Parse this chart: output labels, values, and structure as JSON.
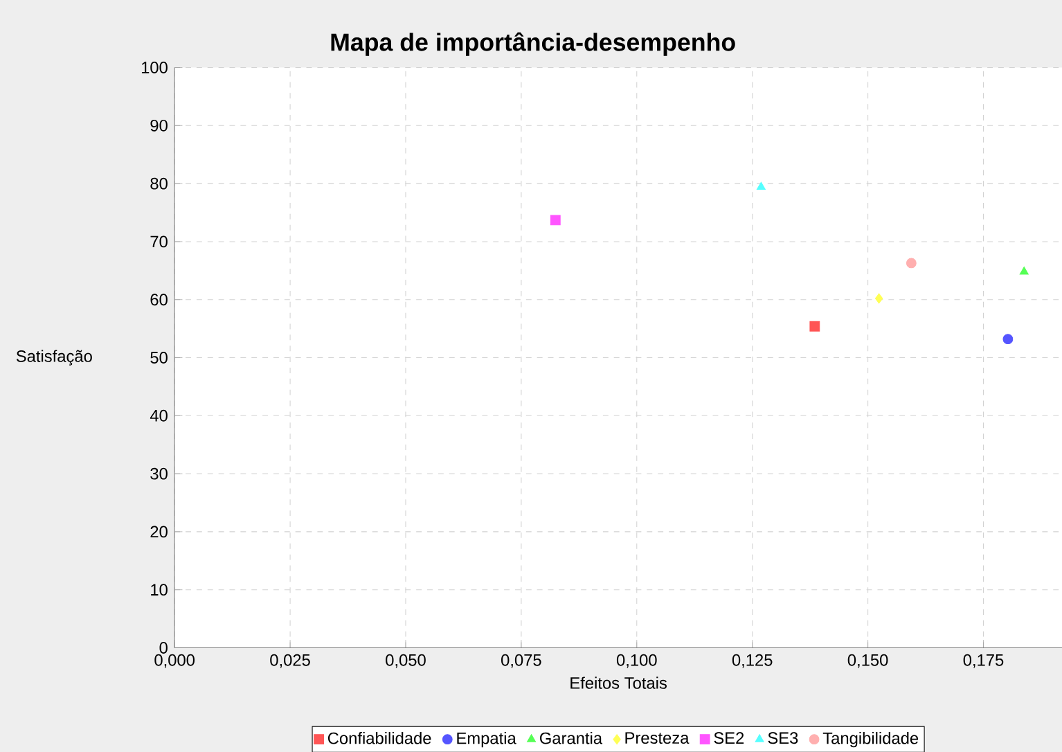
{
  "chart_data": {
    "type": "scatter",
    "title": "Mapa de importância-desempenho",
    "xlabel": "Efeitos Totais",
    "ylabel": "Satisfação",
    "series": [
      {
        "name": "Confiabilidade",
        "color": "#ff5555",
        "marker": "square",
        "x": [
          0.1385
        ],
        "values": [
          55.4
        ]
      },
      {
        "name": "Empatia",
        "color": "#5555ff",
        "marker": "circle",
        "x": [
          0.1803
        ],
        "values": [
          53.2
        ]
      },
      {
        "name": "Garantia",
        "color": "#55ff55",
        "marker": "triangle",
        "x": [
          0.1838
        ],
        "values": [
          64.8
        ]
      },
      {
        "name": "Presteza",
        "color": "#ffff55",
        "marker": "diamond",
        "x": [
          0.1524
        ],
        "values": [
          60.2
        ]
      },
      {
        "name": "SE2",
        "color": "#ff55ff",
        "marker": "square",
        "x": [
          0.0824
        ],
        "values": [
          73.7
        ]
      },
      {
        "name": "SE3",
        "color": "#55ffff",
        "marker": "triangle",
        "x": [
          0.1269
        ],
        "values": [
          79.4
        ]
      },
      {
        "name": "Tangibilidade",
        "color": "#ffafaf",
        "marker": "circle",
        "x": [
          0.1594
        ],
        "values": [
          66.3
        ]
      }
    ],
    "xlim": [
      0,
      0.192
    ],
    "ylim": [
      0,
      100
    ],
    "xticks": [
      {
        "value": 0,
        "label": "0,000"
      },
      {
        "value": 0.025,
        "label": "0,025"
      },
      {
        "value": 0.05,
        "label": "0,050"
      },
      {
        "value": 0.075,
        "label": "0,075"
      },
      {
        "value": 0.1,
        "label": "0,100"
      },
      {
        "value": 0.125,
        "label": "0,125"
      },
      {
        "value": 0.15,
        "label": "0,150"
      },
      {
        "value": 0.175,
        "label": "0,175"
      }
    ],
    "yticks": [
      0,
      10,
      20,
      30,
      40,
      50,
      60,
      70,
      80,
      90,
      100
    ],
    "grid": true,
    "legend": "bottom"
  }
}
